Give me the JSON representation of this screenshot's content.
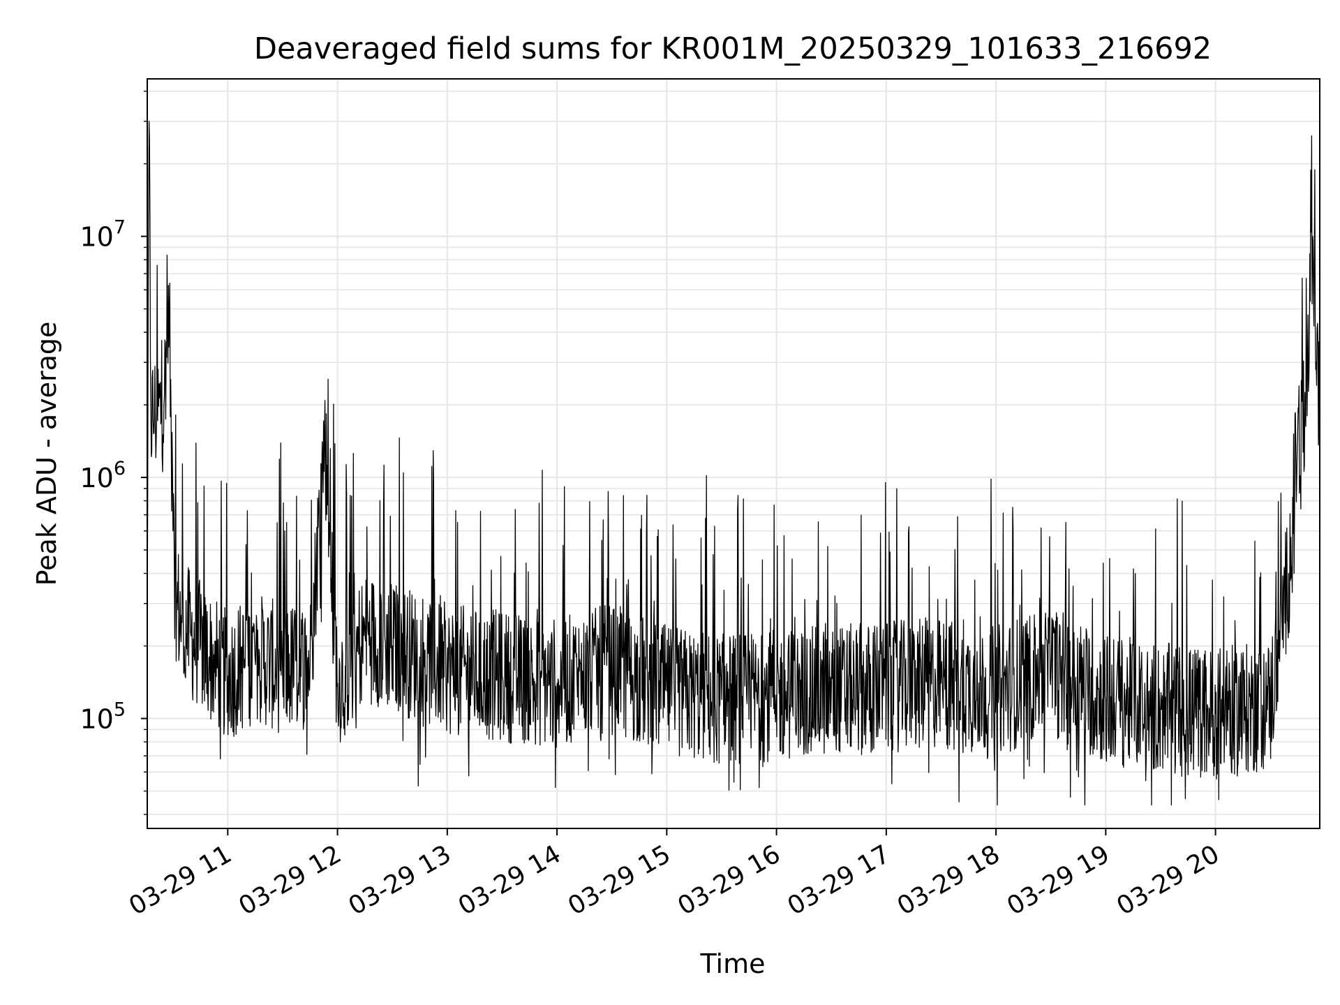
{
  "chart_data": {
    "type": "line",
    "title": "Deaveraged field sums for KR001M_20250329_101633_216692",
    "xlabel": "Time",
    "ylabel": "Peak ADU - average",
    "yscale": "log",
    "ylim": [
      35000,
      45000000
    ],
    "xlim": [
      "2025-03-29 10:16",
      "2025-03-29 20:57"
    ],
    "x_tick_labels": [
      "03-29 11",
      "03-29 12",
      "03-29 13",
      "03-29 14",
      "03-29 15",
      "03-29 16",
      "03-29 17",
      "03-29 18",
      "03-29 19",
      "03-29 20"
    ],
    "y_tick_labels": [
      {
        "value": 100000,
        "base": "10",
        "exp": "5"
      },
      {
        "value": 1000000,
        "base": "10",
        "exp": "6"
      },
      {
        "value": 10000000,
        "base": "10",
        "exp": "7"
      }
    ],
    "grid": true,
    "line_color": "#000000",
    "grid_color": "#e5e5e5",
    "series": [
      {
        "x": [
          "2025-03-29 10:16",
          "2025-03-29 10:17",
          "2025-03-29 10:18",
          "2025-03-29 10:20",
          "2025-03-29 10:25",
          "2025-03-29 10:28",
          "2025-03-29 10:30",
          "2025-03-29 10:32",
          "2025-03-29 10:35",
          "2025-03-29 10:40",
          "2025-03-29 10:45",
          "2025-03-29 10:50",
          "2025-03-29 11:00",
          "2025-03-29 11:15",
          "2025-03-29 11:30",
          "2025-03-29 11:45",
          "2025-03-29 11:53",
          "2025-03-29 12:00",
          "2025-03-29 12:15",
          "2025-03-29 12:30",
          "2025-03-29 12:45",
          "2025-03-29 13:00",
          "2025-03-29 13:30",
          "2025-03-29 14:00",
          "2025-03-29 14:30",
          "2025-03-29 15:00",
          "2025-03-29 15:30",
          "2025-03-29 16:00",
          "2025-03-29 16:30",
          "2025-03-29 17:00",
          "2025-03-29 17:30",
          "2025-03-29 18:00",
          "2025-03-29 18:30",
          "2025-03-29 19:00",
          "2025-03-29 19:30",
          "2025-03-29 20:00",
          "2025-03-29 20:20",
          "2025-03-29 20:30",
          "2025-03-29 20:40",
          "2025-03-29 20:45",
          "2025-03-29 20:50",
          "2025-03-29 20:53",
          "2025-03-29 20:57"
        ],
        "y": [
          300000,
          30000000,
          1800000,
          1800000,
          2000000,
          4800000,
          600000,
          300000,
          250000,
          220000,
          200000,
          180000,
          150000,
          180000,
          160000,
          170000,
          1500000,
          140000,
          220000,
          200000,
          180000,
          160000,
          150000,
          140000,
          160000,
          130000,
          120000,
          125000,
          130000,
          135000,
          140000,
          130000,
          160000,
          120000,
          110000,
          105000,
          110000,
          115000,
          400000,
          1500000,
          1800000,
          10000000,
          1700000
        ]
      }
    ]
  }
}
